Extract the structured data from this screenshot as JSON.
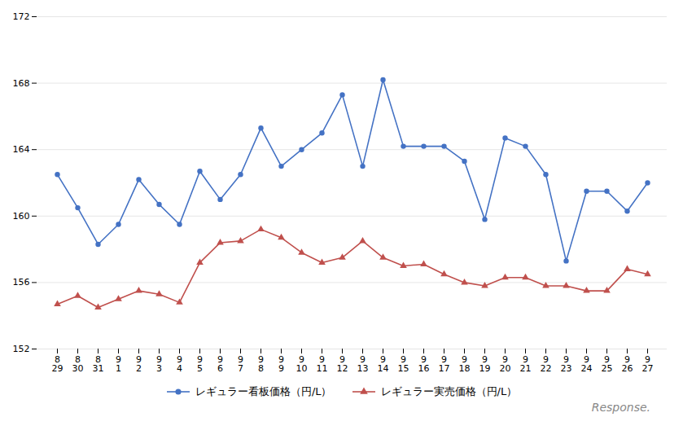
{
  "chart_data": {
    "type": "line",
    "categories": [
      "8\n29",
      "8\n30",
      "8\n31",
      "9\n1",
      "9\n2",
      "9\n3",
      "9\n4",
      "9\n5",
      "9\n6",
      "9\n7",
      "9\n8",
      "9\n9",
      "9\n10",
      "9\n11",
      "9\n12",
      "9\n13",
      "9\n14",
      "9\n15",
      "9\n16",
      "9\n17",
      "9\n18",
      "9\n19",
      "9\n20",
      "9\n21",
      "9\n22",
      "9\n23",
      "9\n24",
      "9\n25",
      "9\n26",
      "9\n27"
    ],
    "series": [
      {
        "name": "レギュラー看板価格（円/L）",
        "color": "#4472c4",
        "marker": "circle",
        "values": [
          162.5,
          160.5,
          158.3,
          159.5,
          162.2,
          160.7,
          159.5,
          162.7,
          161.0,
          162.5,
          165.3,
          163.0,
          164.0,
          165.0,
          167.3,
          163.0,
          168.2,
          164.2,
          164.2,
          164.2,
          163.3,
          159.8,
          164.7,
          164.2,
          162.5,
          157.3,
          161.5,
          161.5,
          160.3,
          162.0
        ]
      },
      {
        "name": "レギュラー実売価格（円/L）",
        "color": "#c0504d",
        "marker": "triangle",
        "values": [
          154.7,
          155.2,
          154.5,
          155.0,
          155.5,
          155.3,
          154.8,
          157.2,
          158.4,
          158.5,
          159.2,
          158.7,
          157.8,
          157.2,
          157.5,
          158.5,
          157.5,
          157.0,
          157.1,
          156.5,
          156.0,
          155.8,
          156.3,
          156.3,
          155.8,
          155.8,
          155.5,
          155.5,
          156.8,
          156.5
        ]
      }
    ],
    "ylim": [
      152,
      172
    ],
    "yticks": [
      152,
      156,
      160,
      164,
      168,
      172
    ],
    "grid": true,
    "legend": "bottom",
    "annotation": "Response."
  }
}
